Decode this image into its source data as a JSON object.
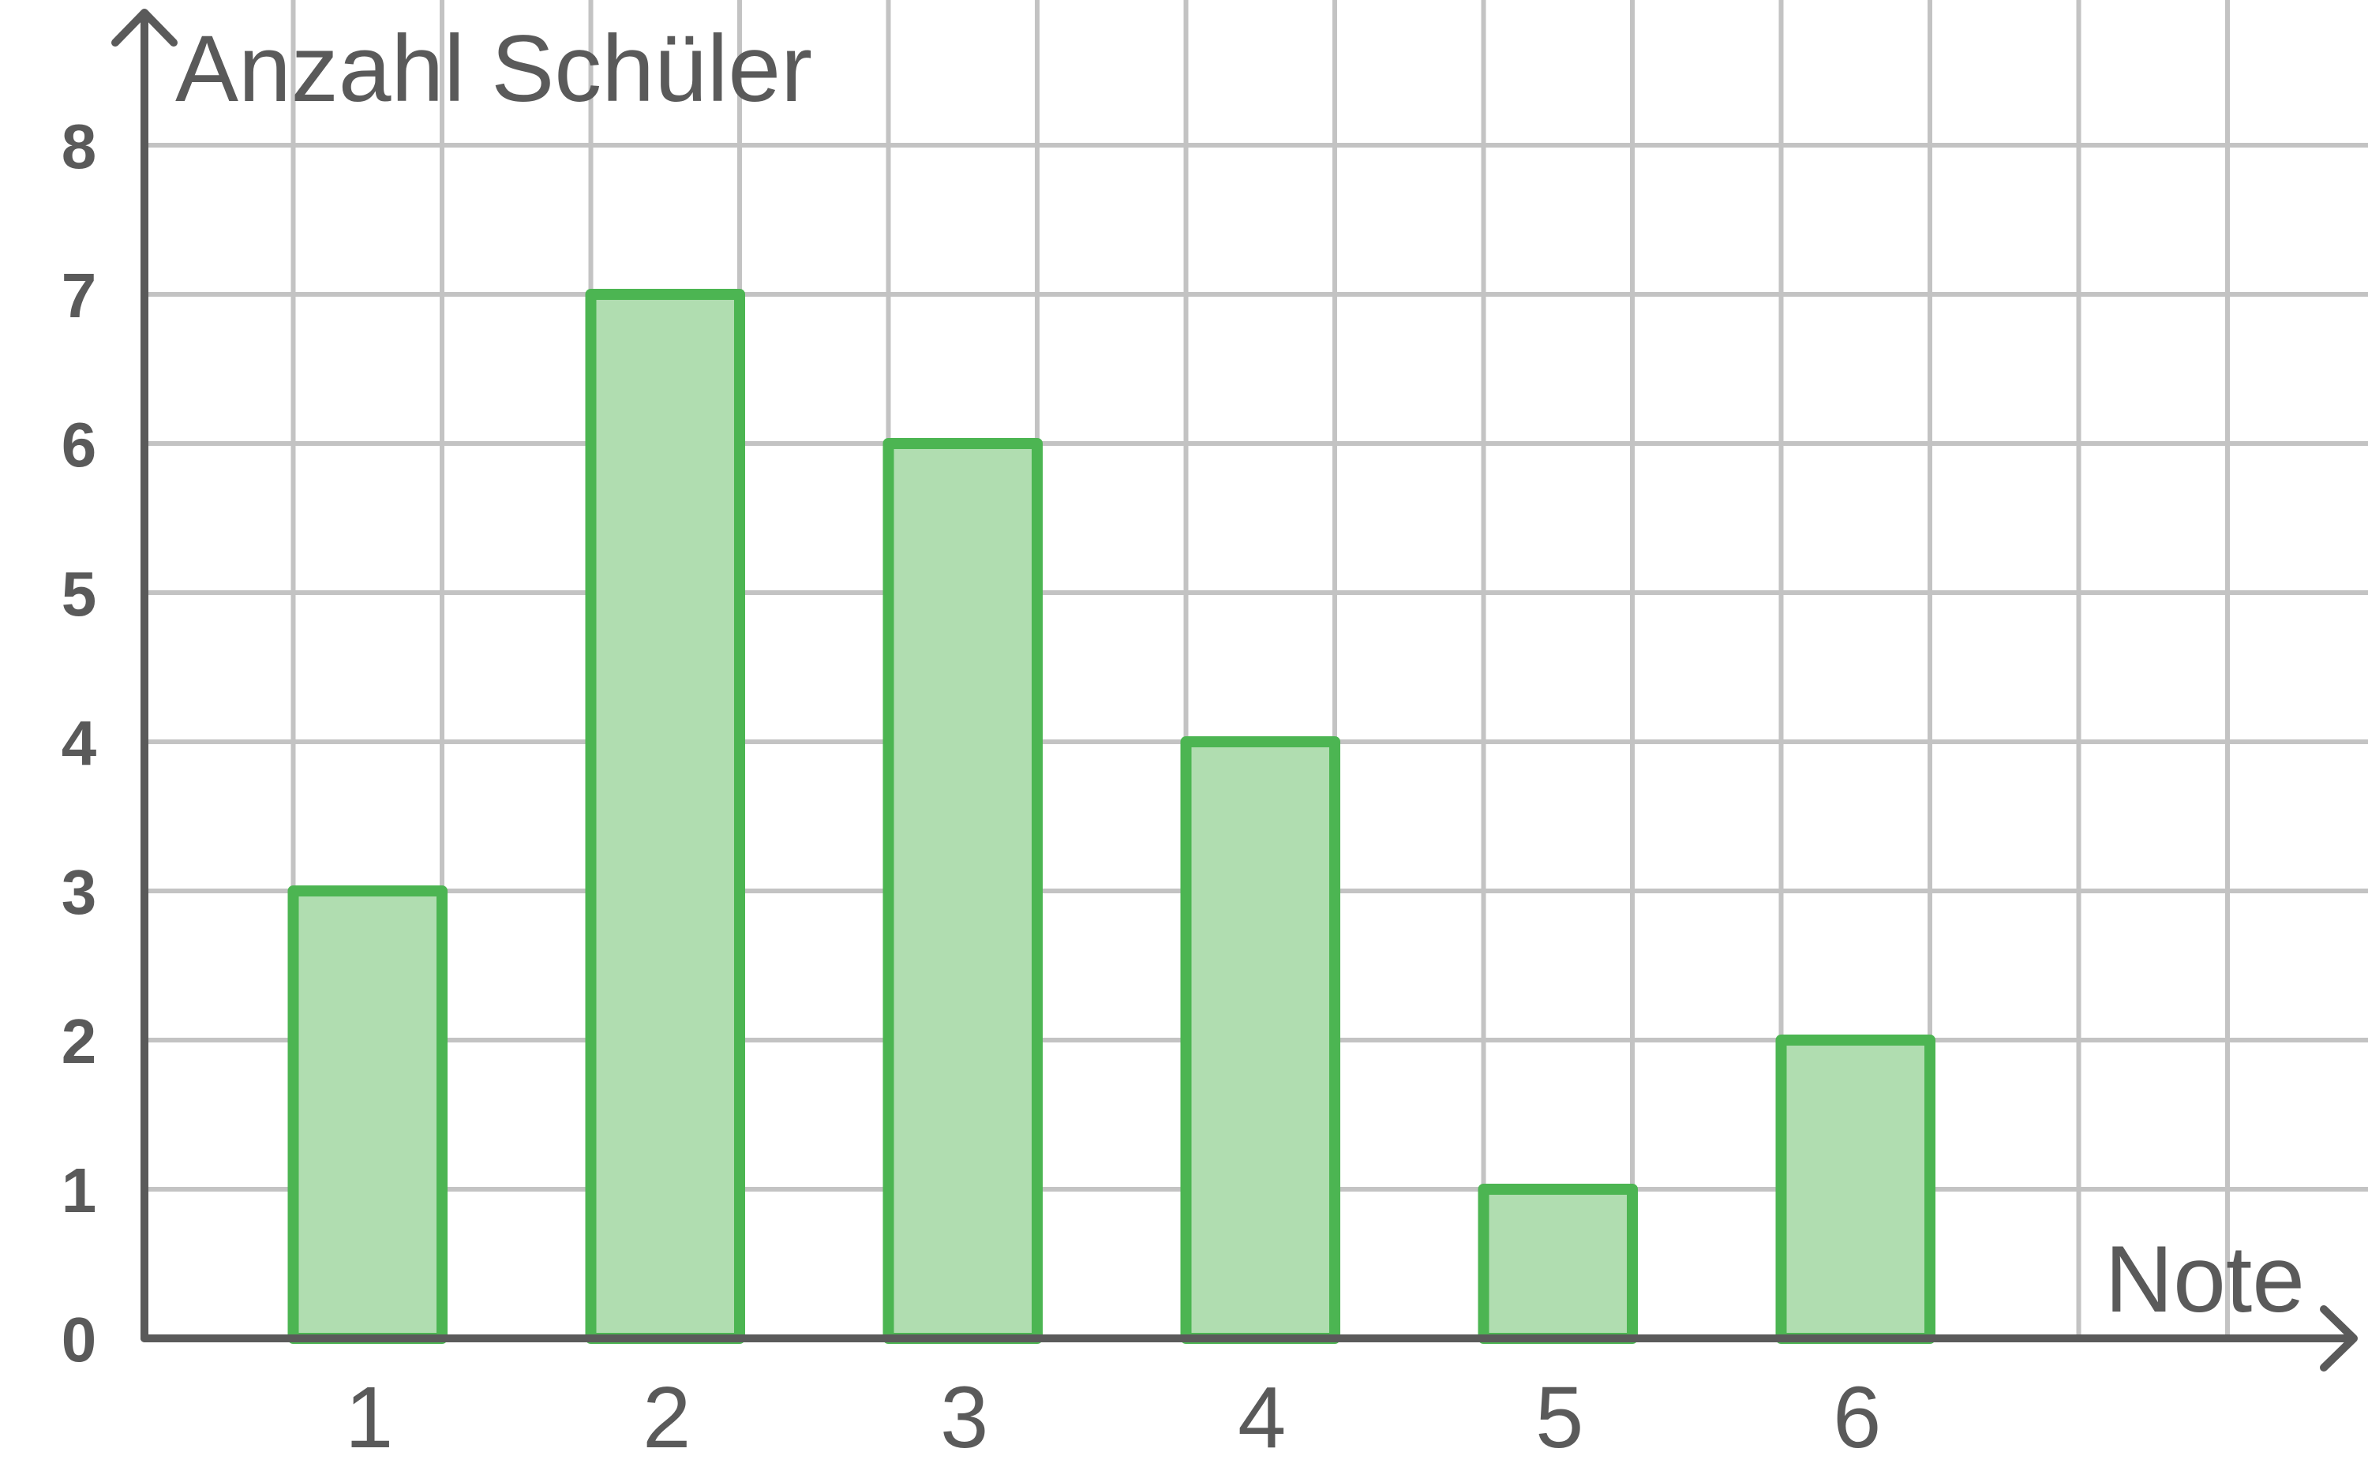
{
  "chart_data": {
    "type": "bar",
    "categories": [
      "1",
      "2",
      "3",
      "4",
      "5",
      "6"
    ],
    "values": [
      3,
      7,
      6,
      4,
      1,
      2
    ],
    "title": "",
    "xlabel": "Note",
    "ylabel": "Anzahl Schüler",
    "ylim": [
      0,
      8
    ],
    "y_ticks": [
      "0",
      "1",
      "2",
      "3",
      "4",
      "5",
      "6",
      "7",
      "8"
    ],
    "grid": true,
    "colors": {
      "bar_fill": "#b0ddb0",
      "bar_stroke": "#4cb552",
      "grid": "#c3c3c3",
      "axis": "#5a5a5a",
      "text": "#5a5a5a"
    }
  }
}
